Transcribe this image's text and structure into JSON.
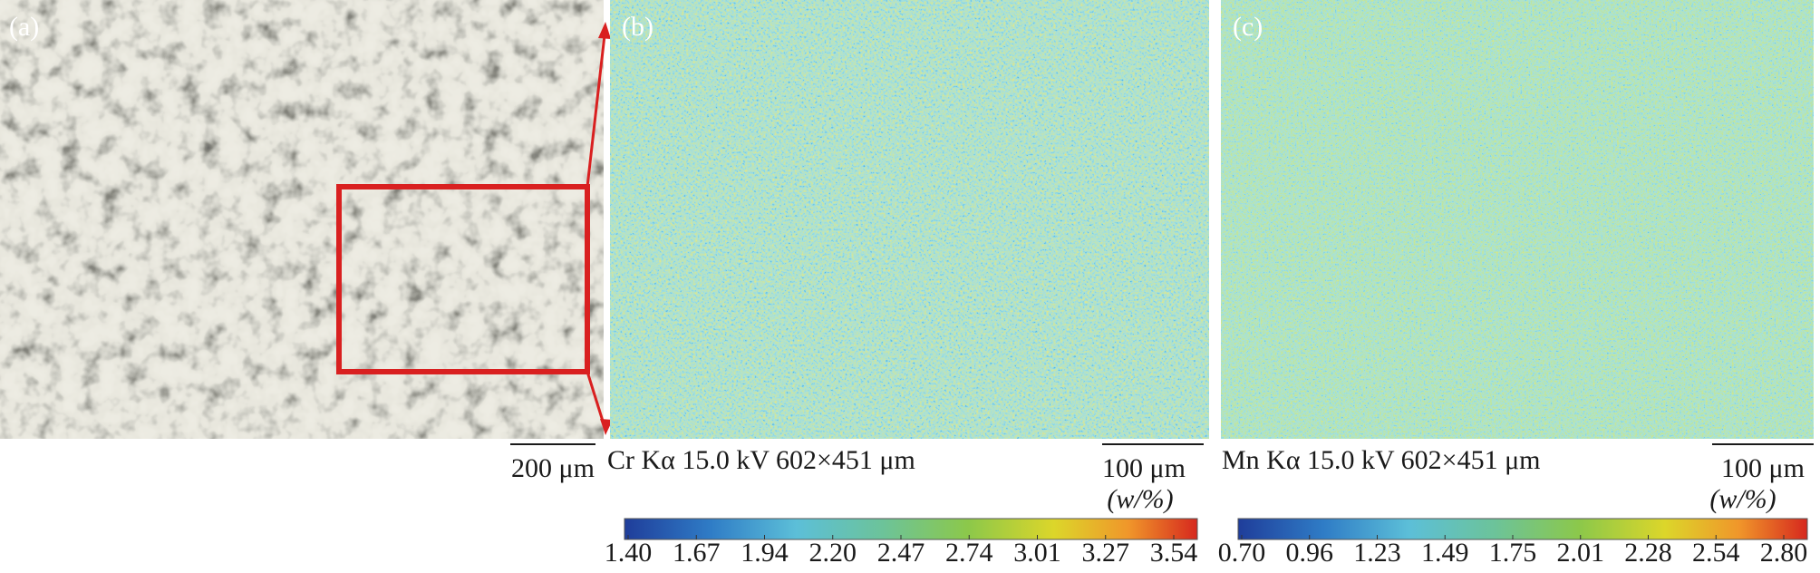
{
  "panels": [
    {
      "label": "(a)",
      "scale_bar": "200 μm"
    },
    {
      "label": "(b)",
      "caption": "Cr Kα 15.0 kV 602×451 μm",
      "scale_bar": "100 μm",
      "unit": "(w/%)",
      "colorbar_ticks": [
        "1.40",
        "1.67",
        "1.94",
        "2.20",
        "2.47",
        "2.74",
        "3.01",
        "3.27",
        "3.54"
      ]
    },
    {
      "label": "(c)",
      "caption": "Mn Kα 15.0 kV 602×451 μm",
      "scale_bar": "100 μm",
      "unit": "(w/%)",
      "colorbar_ticks": [
        "0.70",
        "0.96",
        "1.23",
        "1.49",
        "1.75",
        "2.01",
        "2.28",
        "2.54",
        "2.80"
      ]
    }
  ]
}
